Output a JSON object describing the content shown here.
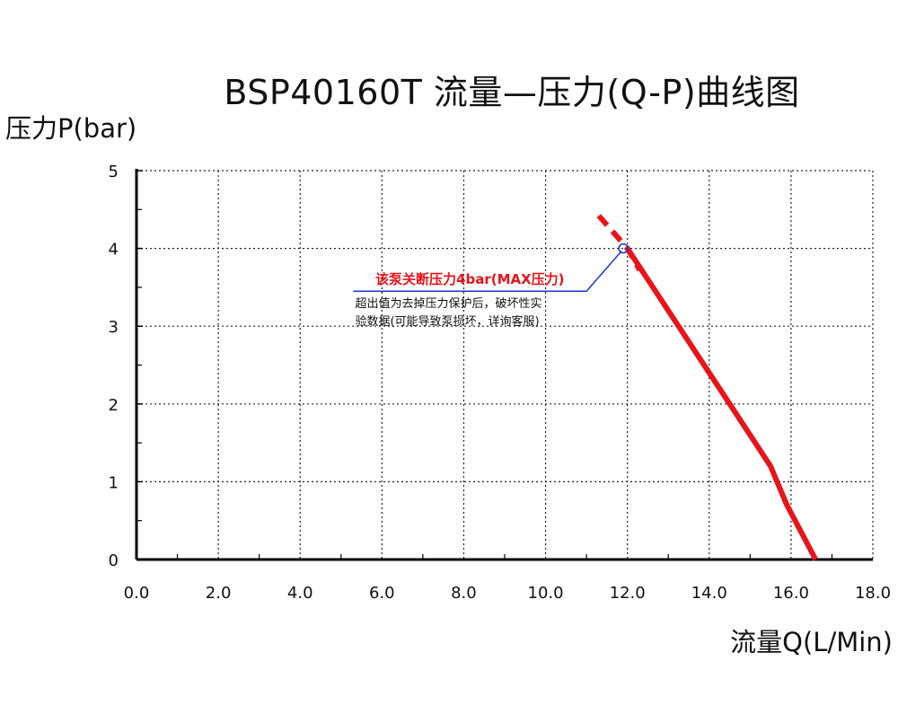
{
  "chart_data": {
    "type": "line",
    "title": "BSP40160T 流量—压力(Q-P)曲线图",
    "xlabel": "流量Q(L/Min)",
    "ylabel": "压力P(bar)",
    "xlim": [
      0,
      18
    ],
    "ylim": [
      0,
      5
    ],
    "x_ticks": [
      "0.0",
      "2.0",
      "4.0",
      "6.0",
      "8.0",
      "10.0",
      "12.0",
      "14.0",
      "16.0",
      "18.0"
    ],
    "y_ticks": [
      "0",
      "1",
      "2",
      "3",
      "4",
      "5"
    ],
    "grid": true,
    "series": [
      {
        "color": "#e8141a",
        "style": "solid",
        "points": [
          [
            12.0,
            4.0
          ],
          [
            12.5,
            3.6
          ],
          [
            13.0,
            3.2
          ],
          [
            13.5,
            2.8
          ],
          [
            14.0,
            2.4
          ],
          [
            14.5,
            2.0
          ],
          [
            15.0,
            1.6
          ],
          [
            15.5,
            1.2
          ],
          [
            15.9,
            0.7
          ],
          [
            16.3,
            0.3
          ],
          [
            16.6,
            0.0
          ]
        ]
      },
      {
        "color": "#e8141a",
        "style": "dashed",
        "points": [
          [
            11.3,
            4.42
          ],
          [
            12.0,
            4.0
          ],
          [
            12.3,
            3.72
          ]
        ]
      }
    ],
    "annotation": {
      "point": [
        11.9,
        4.0
      ],
      "title": "该泵关断压力4bar(MAX压力)",
      "lines": [
        "超出值为去掉压力保护后，破坏性实",
        "验数据(可能导致泵损坏，详询客服)"
      ],
      "title_color": "#e8141a",
      "leader_color": "#1a35d6"
    }
  }
}
